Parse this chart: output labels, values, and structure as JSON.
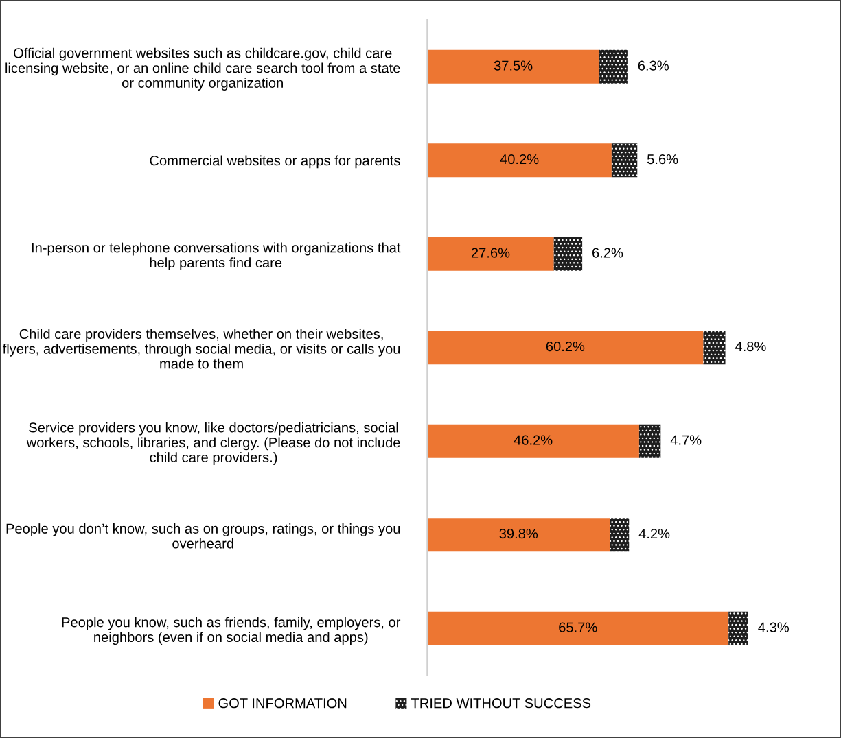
{
  "chart_data": {
    "type": "bar",
    "orientation": "horizontal",
    "stacked": true,
    "categories": [
      "Official government websites such as childcare.gov, child care licensing website, or an online child care search tool from a state or community organization",
      "Commercial websites or apps for parents",
      "In-person or telephone conversations with organizations that help parents find care",
      "Child care providers themselves, whether on their websites, flyers, advertisements, through social media, or visits or calls you made to them",
      "Service providers you know, like doctors/pediatricians, social workers, schools, libraries, and clergy. (Please do not include child care providers.)",
      "People you don’t know, such as on groups, ratings, or things you overheard",
      "People you know, such as friends, family, employers, or neighbors (even if on social media and apps)"
    ],
    "series": [
      {
        "name": "GOT INFORMATION",
        "color": "#ed7632",
        "values": [
          37.5,
          40.2,
          27.6,
          60.2,
          46.2,
          39.8,
          65.7
        ],
        "value_labels": [
          "37.5%",
          "40.2%",
          "27.6%",
          "60.2%",
          "46.2%",
          "39.8%",
          "65.7%"
        ]
      },
      {
        "name": "TRIED WITHOUT SUCCESS",
        "color": "#1e1e1e",
        "values": [
          6.3,
          5.6,
          6.2,
          4.8,
          4.7,
          4.2,
          4.3
        ],
        "value_labels": [
          "6.3%",
          "5.6%",
          "6.2%",
          "4.8%",
          "4.7%",
          "4.2%",
          "4.3%"
        ]
      }
    ],
    "legend": "bottom"
  }
}
